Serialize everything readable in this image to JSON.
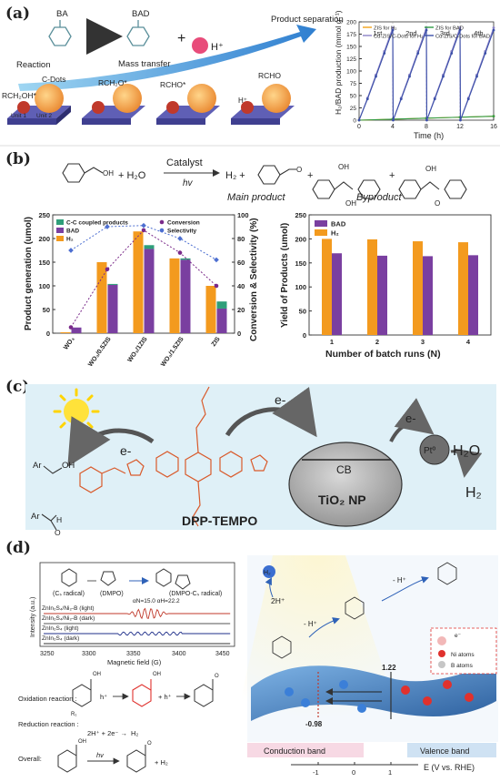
{
  "panels": {
    "a": {
      "label": "(a)",
      "schematic": {
        "reactant": "BA",
        "product": "BAD",
        "proton": "H⁺",
        "step_reaction": "Reaction",
        "step_transfer": "Mass transfer",
        "step_separation": "Product separation",
        "cdots": "C-Dots",
        "rch2oh": "RCH₂OH*",
        "rch2o": "RCH₂O*",
        "rcho_ads": "RCHO*",
        "rcho": "RCHO",
        "hplus": "H⁺",
        "unit1": "Unit 1",
        "unit2": "Unit 2"
      }
    },
    "b": {
      "label": "(b)",
      "equation": {
        "plus1": "+ H₂O",
        "catalyst": "Catalyst",
        "hv": "hv",
        "h2": "H₂ +",
        "plus2": "+",
        "plus3": "+",
        "main_product": "Main product",
        "byproduct": "Byproduct"
      }
    },
    "c": {
      "label": "(c)",
      "electrons": [
        "e-",
        "e-",
        "e-",
        "e-",
        "e-"
      ],
      "ar_top": "Ar",
      "oh": "OH",
      "ar_bottom": "Ar",
      "h": "H",
      "o": "O",
      "dye": "DPP-TEMPO",
      "cb": "CB",
      "nanoparticle": "TiO₂ NP",
      "pt": "Ptº",
      "h2o": "H₂O",
      "h2": "H₂"
    },
    "d": {
      "label": "(d)",
      "epr": {
        "cs_radical": "(Cₛ radical)",
        "dmpo": "(DMPO)",
        "adduct": "(DMPO-Cₛ radical)",
        "coupling": "αN=15.0  αH=22.2",
        "traces": [
          "ZnIn₂S₄/Ni₂-B (light)",
          "ZnIn₂S₄/Ni₂-B (dark)",
          "ZnIn₂S₄ (light)",
          "ZnIn₂S₄ (dark)"
        ],
        "ylabel": "Intensity (a.u.)",
        "xlabel": "Magnetic field (G)",
        "xticks": [
          "3250",
          "3300",
          "3350",
          "3400",
          "3450"
        ]
      },
      "reactions": {
        "oxidation": "Oxidation reaction :",
        "reduction": "Reduction reaction :",
        "reduction_eq": "2H⁺ + 2e⁻ →",
        "reduction_prod": "H₂",
        "overall": "Overall:",
        "hplus": "h⁺",
        "hplus2": "+ h⁺",
        "h2": "+ H₂",
        "hv": "hv",
        "r1": "R₁"
      },
      "scheme": {
        "h2": "H₂",
        "twoh": "2H⁺",
        "hminus1": "- H⁺",
        "hminus2": "- H⁺",
        "electron": "e⁻",
        "ni_atoms": "Ni atoms",
        "b_atoms": "B atoms",
        "cb_value": "-0.98",
        "vb_value": "1.22",
        "cb_label": "Conduction band",
        "vb_label": "Valence band",
        "axis_label": "E (V vs. RHE)",
        "ticks": [
          "-1",
          "0",
          "1"
        ]
      }
    }
  },
  "chart_data": [
    {
      "type": "line",
      "title": "",
      "xlabel": "Time (h)",
      "ylabel": "H₂/BAD production (mmol g⁻¹)",
      "xlim": [
        0,
        16
      ],
      "ylim": [
        0,
        200
      ],
      "xticks": [
        0,
        4,
        8,
        12,
        16
      ],
      "yticks": [
        0,
        25,
        50,
        75,
        100,
        125,
        150,
        175,
        200
      ],
      "cycle_labels": [
        "1st",
        "2nd",
        "3rd",
        "4th"
      ],
      "legend_position": "top",
      "series": [
        {
          "name": "ZIS for H₂",
          "color": "#f3a21a",
          "x": [
            0,
            4,
            8,
            12,
            16
          ],
          "y": [
            0,
            2,
            4,
            6,
            8
          ]
        },
        {
          "name": "ZIS for BAD",
          "color": "#2e9b45",
          "x": [
            0,
            4,
            8,
            12,
            16
          ],
          "y": [
            0,
            2,
            4,
            6,
            8
          ]
        },
        {
          "name": "Cu-ZIS/C-Dots for H₂",
          "color": "#8b83c8",
          "x": [
            0,
            1,
            2,
            3,
            4,
            4.05,
            5,
            6,
            7,
            8,
            8.05,
            9,
            10,
            11,
            12,
            12.05,
            13,
            14,
            15,
            16
          ],
          "y": [
            0,
            45,
            92,
            140,
            188,
            0,
            45,
            92,
            140,
            188,
            0,
            45,
            92,
            140,
            188,
            0,
            45,
            92,
            140,
            188
          ]
        },
        {
          "name": "Cu-ZIS/C-Dots for BAD",
          "color": "#3b4fa8",
          "x": [
            0,
            1,
            2,
            3,
            4,
            4.05,
            5,
            6,
            7,
            8,
            8.05,
            9,
            10,
            11,
            12,
            12.05,
            13,
            14,
            15,
            16
          ],
          "y": [
            0,
            43,
            89,
            136,
            183,
            0,
            43,
            89,
            136,
            183,
            0,
            43,
            89,
            136,
            183,
            0,
            43,
            89,
            136,
            183
          ]
        }
      ]
    },
    {
      "type": "bar",
      "title": "",
      "xlabel": "",
      "ylabel": "Product generation (umol)",
      "y2label": "Conversion & Selectivity (%)",
      "categories": [
        "WO₃",
        "WO₃/0.5ZIS",
        "WO₃/1ZIS",
        "WO₃/1.5ZIS",
        "ZIS"
      ],
      "ylim": [
        0,
        250
      ],
      "y2lim": [
        0,
        100
      ],
      "yticks": [
        0,
        50,
        100,
        150,
        200,
        250
      ],
      "y2ticks": [
        0,
        20,
        40,
        60,
        80,
        100
      ],
      "legend_position": "top-left",
      "series": [
        {
          "name": "C-C coupled products",
          "color": "#2f9e7a",
          "kind": "bar",
          "stack_on": "BAD",
          "values": [
            0,
            2,
            8,
            3,
            15
          ]
        },
        {
          "name": "BAD",
          "color": "#7a3fa0",
          "kind": "bar",
          "values": [
            12,
            102,
            178,
            155,
            52
          ]
        },
        {
          "name": "H₂",
          "color": "#f39a1e",
          "kind": "bar",
          "values": [
            2,
            150,
            215,
            158,
            100
          ]
        },
        {
          "name": "Conversion",
          "color": "#7a2a8a",
          "kind": "line",
          "axis": "y2",
          "values": [
            5,
            54,
            87,
            68,
            40
          ]
        },
        {
          "name": "Selectivity",
          "color": "#4d6fd1",
          "kind": "line",
          "axis": "y2",
          "values": [
            70,
            90,
            91,
            80,
            62
          ]
        }
      ]
    },
    {
      "type": "bar",
      "title": "",
      "xlabel": "Number of batch runs (N)",
      "ylabel": "Yield of Products (umol)",
      "categories": [
        "1",
        "2",
        "3",
        "4"
      ],
      "ylim": [
        0,
        250
      ],
      "yticks": [
        0,
        50,
        100,
        150,
        200,
        250
      ],
      "legend_position": "top-left",
      "series": [
        {
          "name": "BAD",
          "color": "#7a3fa0",
          "values": [
            170,
            165,
            164,
            166
          ]
        },
        {
          "name": "H₂",
          "color": "#f39a1e",
          "values": [
            200,
            199,
            195,
            193
          ]
        }
      ]
    }
  ]
}
